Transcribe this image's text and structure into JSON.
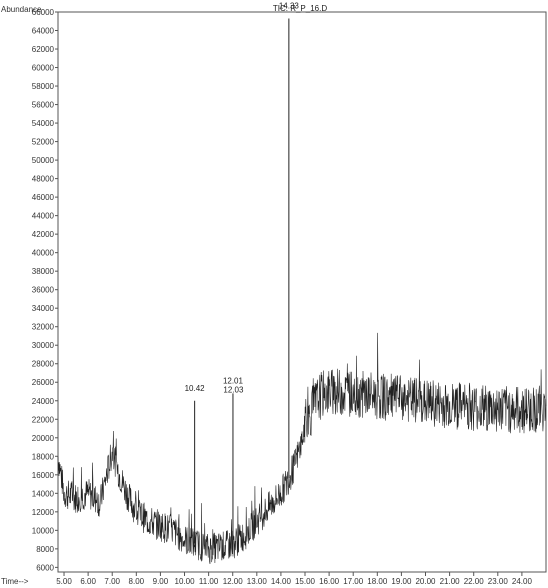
{
  "chart_data": {
    "type": "line",
    "title": "TIC: R_P_16.D",
    "ylabel": "Abundance",
    "xlabel": "Time-->",
    "xlim": [
      4.75,
      25.0
    ],
    "ylim": [
      5500,
      66000
    ],
    "xticks": [
      5.0,
      6.0,
      7.0,
      8.0,
      9.0,
      10.0,
      11.0,
      12.0,
      13.0,
      14.0,
      15.0,
      16.0,
      17.0,
      18.0,
      19.0,
      20.0,
      21.0,
      22.0,
      23.0,
      24.0
    ],
    "xtick_labels": [
      "5.00",
      "6.00",
      "7.00",
      "8.00",
      "9.00",
      "10.00",
      "11.00",
      "12.00",
      "13.00",
      "14.00",
      "15.00",
      "16.00",
      "17.00",
      "18.00",
      "19.00",
      "20.00",
      "21.00",
      "22.00",
      "23.00",
      "24.00"
    ],
    "yticks": [
      6000,
      8000,
      10000,
      12000,
      14000,
      16000,
      18000,
      20000,
      22000,
      24000,
      26000,
      28000,
      30000,
      32000,
      34000,
      36000,
      38000,
      40000,
      42000,
      44000,
      46000,
      48000,
      50000,
      52000,
      54000,
      56000,
      58000,
      60000,
      62000,
      64000,
      66000
    ],
    "ytick_labels": [
      "6000",
      "8000",
      "10000",
      "12000",
      "14000",
      "16000",
      "18000",
      "20000",
      "22000",
      "24000",
      "26000",
      "28000",
      "30000",
      "32000",
      "34000",
      "36000",
      "38000",
      "40000",
      "42000",
      "44000",
      "46000",
      "48000",
      "50000",
      "52000",
      "54000",
      "56000",
      "58000",
      "60000",
      "62000",
      "64000",
      "66000"
    ],
    "grid": false,
    "series": [
      {
        "x": [
          4.75,
          5.0,
          5.5,
          6.0,
          6.5,
          7.0,
          7.3,
          7.6,
          8.0,
          8.5,
          9.0,
          9.5,
          10.0,
          10.5,
          11.0,
          11.5,
          12.0,
          12.5,
          13.0,
          13.5,
          14.0,
          14.2,
          14.5,
          14.8,
          15.0,
          15.3,
          15.6,
          16.0,
          17.0,
          18.0,
          19.0,
          20.0,
          21.0,
          22.0,
          23.0,
          24.0,
          25.0
        ],
        "y": [
          18000,
          14000,
          13500,
          14000,
          13000,
          18500,
          16000,
          14000,
          12000,
          11000,
          10500,
          10000,
          9000,
          8500,
          8000,
          8200,
          8500,
          9500,
          11000,
          12500,
          14000,
          15000,
          16500,
          19000,
          21000,
          23000,
          24500,
          25000,
          24800,
          24500,
          24200,
          23800,
          23500,
          23300,
          23100,
          23000,
          23200
        ]
      }
    ],
    "peaks": [
      {
        "label": "10.42",
        "x": 10.42,
        "y": 24000
      },
      {
        "label": "12.01",
        "x": 12.01,
        "y": 24800
      },
      {
        "label": "12.03",
        "x": 12.03,
        "y": 24800
      },
      {
        "label": "14.33",
        "x": 14.33,
        "y": 65300
      }
    ]
  }
}
